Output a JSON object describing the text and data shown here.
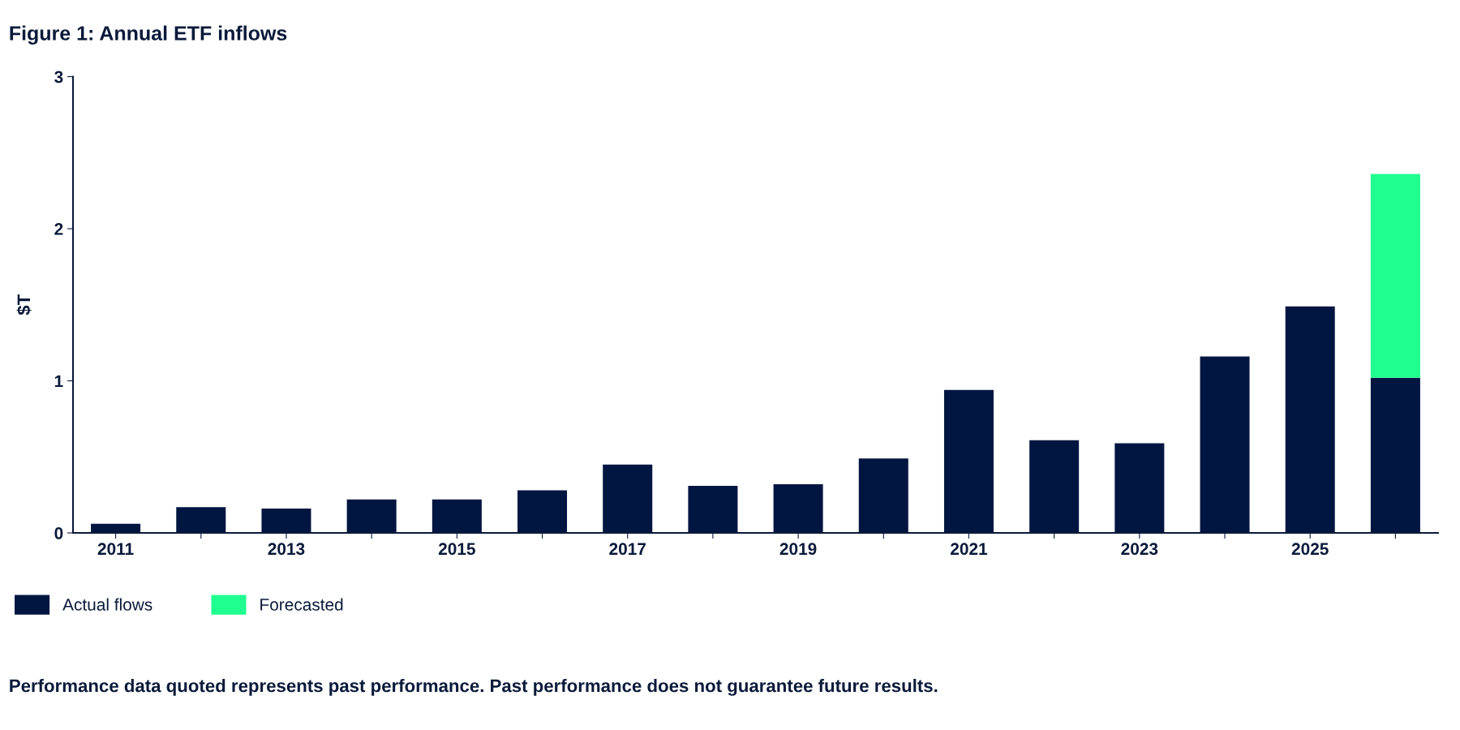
{
  "chart_data": {
    "type": "bar",
    "title": "Figure 1: Annual ETF inflows",
    "ylabel": "$T",
    "categories": [
      "2011",
      null,
      "2013",
      null,
      "2015",
      null,
      "2017",
      null,
      "2019",
      null,
      "2021",
      null,
      "2023",
      null,
      "2025",
      null
    ],
    "series": [
      {
        "name": "Actual flows",
        "color": "#001540",
        "values": [
          0.06,
          0.17,
          0.16,
          0.22,
          0.22,
          0.28,
          0.45,
          0.31,
          0.32,
          0.49,
          0.94,
          0.61,
          0.59,
          1.16,
          1.49,
          1.02
        ]
      },
      {
        "name": "Forecasted",
        "color": "#1fff8f",
        "values": [
          null,
          null,
          null,
          null,
          null,
          null,
          null,
          null,
          null,
          null,
          null,
          null,
          null,
          null,
          null,
          1.34
        ]
      }
    ],
    "stacked": true,
    "ylim": [
      0,
      3
    ],
    "yticks": [
      0,
      1,
      2,
      3
    ],
    "grid": false,
    "legend": "bottom",
    "annotations": [
      "Performance data quoted represents past performance. Past performance does not guarantee future results."
    ]
  }
}
